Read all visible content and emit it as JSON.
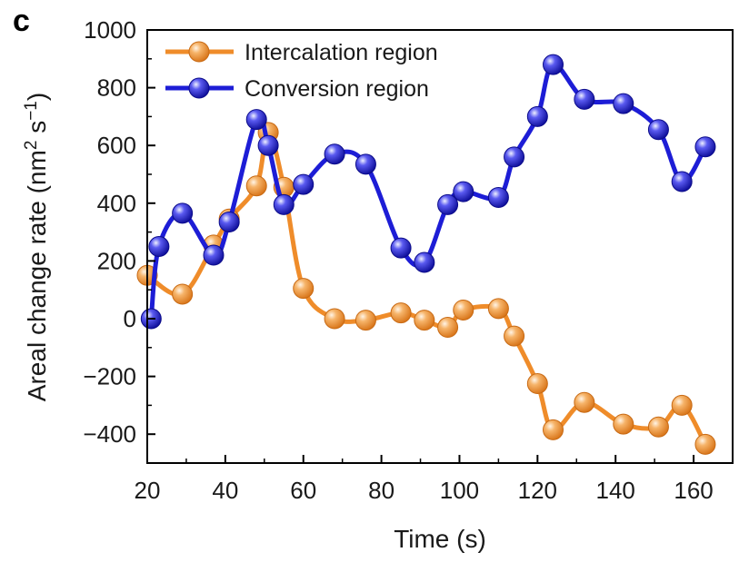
{
  "panel_label": "c",
  "chart_data": {
    "type": "line",
    "xlabel": "Time (s)",
    "ylabel": "Areal change rate (nm",
    "ylabel_sup1": "2",
    "ylabel_mid": " s",
    "ylabel_sup2": "−1",
    "ylabel_end": ")",
    "xlim": [
      20,
      170
    ],
    "ylim": [
      -500,
      1000
    ],
    "xticks": [
      20,
      40,
      60,
      80,
      100,
      120,
      140,
      160
    ],
    "xtick_labels": [
      "20",
      "40",
      "60",
      "80",
      "100",
      "120",
      "140",
      "160"
    ],
    "yticks": [
      -400,
      -200,
      0,
      200,
      400,
      600,
      800,
      1000
    ],
    "ytick_labels": [
      "−400",
      "−200",
      "0",
      "200",
      "400",
      "600",
      "800",
      "1000"
    ],
    "legend_position": "top-left",
    "series": [
      {
        "name": "Intercalation region",
        "color": "#ef8c2a",
        "x": [
          20,
          29,
          37,
          41,
          48,
          51,
          55,
          60,
          68,
          76,
          85,
          91,
          97,
          101,
          110,
          114,
          120,
          124,
          132,
          142,
          151,
          157,
          163
        ],
        "y": [
          150,
          85,
          255,
          345,
          460,
          645,
          455,
          105,
          0,
          -5,
          20,
          -5,
          -30,
          30,
          35,
          -60,
          -225,
          -385,
          -290,
          -365,
          -375,
          -300,
          -435
        ]
      },
      {
        "name": "Conversion region",
        "color": "#1d1dd6",
        "x": [
          21,
          23,
          29,
          37,
          41,
          48,
          51,
          55,
          60,
          68,
          76,
          85,
          91,
          97,
          101,
          110,
          114,
          120,
          124,
          132,
          142,
          151,
          157,
          163
        ],
        "y": [
          0,
          250,
          365,
          220,
          335,
          690,
          600,
          395,
          465,
          570,
          535,
          245,
          195,
          395,
          440,
          420,
          560,
          700,
          880,
          760,
          745,
          655,
          475,
          595
        ]
      }
    ]
  }
}
